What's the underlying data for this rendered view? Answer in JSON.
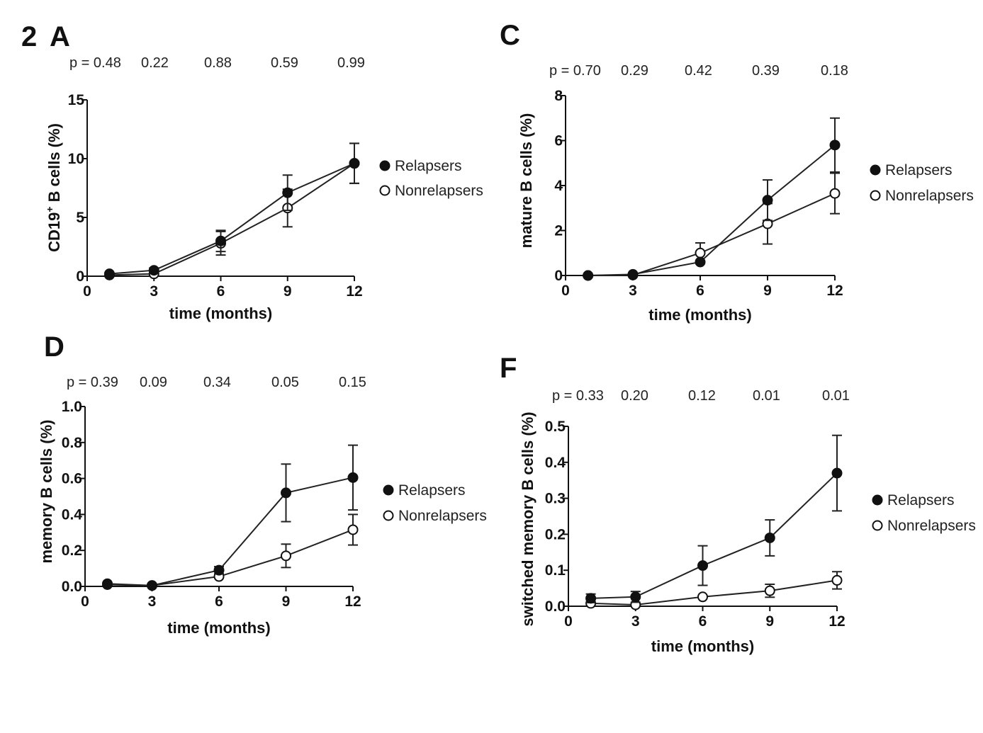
{
  "figure": {
    "number": "2",
    "legend": {
      "filled": "Relapsers",
      "open": "Nonrelapsers"
    }
  },
  "chart_data": [
    {
      "panel": "A",
      "type": "line",
      "xlabel": "time (months)",
      "ylabel_pre": "CD19",
      "ylabel_sup": "+",
      "ylabel_post": " B cells (%)",
      "xlim": [
        0,
        12
      ],
      "ylim": [
        0,
        15
      ],
      "xticks": [
        0,
        3,
        6,
        9,
        12
      ],
      "yticks": [
        0,
        5,
        10,
        15
      ],
      "yticklabels": [
        "0",
        "5",
        "10",
        "15"
      ],
      "p_values": [
        "p = 0.48",
        "0.22",
        "0.88",
        "0.59",
        "0.99"
      ],
      "x": [
        1,
        3,
        6,
        9,
        12
      ],
      "series": [
        {
          "name": "Relapsers",
          "marker": "filled",
          "values": [
            0.2,
            0.5,
            3.0,
            7.1,
            9.6
          ],
          "errors": [
            0.1,
            0.2,
            0.9,
            1.5,
            1.7
          ]
        },
        {
          "name": "Nonrelapsers",
          "marker": "open",
          "values": [
            0.1,
            0.2,
            2.8,
            5.8,
            9.6
          ],
          "errors": [
            0.1,
            0.1,
            1.0,
            1.6,
            1.7
          ]
        }
      ]
    },
    {
      "panel": "C",
      "type": "line",
      "xlabel": "time (months)",
      "ylabel": "mature B cells (%)",
      "xlim": [
        0,
        12
      ],
      "ylim": [
        0,
        8
      ],
      "xticks": [
        0,
        3,
        6,
        9,
        12
      ],
      "yticks": [
        0,
        2,
        4,
        6,
        8
      ],
      "yticklabels": [
        "0",
        "2",
        "4",
        "6",
        "8"
      ],
      "p_values": [
        "p = 0.70",
        "0.29",
        "0.42",
        "0.39",
        "0.18"
      ],
      "x": [
        1,
        3,
        6,
        9,
        12
      ],
      "series": [
        {
          "name": "Relapsers",
          "marker": "filled",
          "values": [
            0.0,
            0.05,
            0.6,
            3.35,
            5.8
          ],
          "errors": [
            0.0,
            0.0,
            0.0,
            0.9,
            1.2
          ]
        },
        {
          "name": "Nonrelapsers",
          "marker": "open",
          "values": [
            0.0,
            0.02,
            1.0,
            2.3,
            3.65
          ],
          "errors": [
            0.0,
            0.0,
            0.45,
            0.9,
            0.9
          ]
        }
      ]
    },
    {
      "panel": "D",
      "type": "line",
      "xlabel": "time (months)",
      "ylabel": "memory B cells (%)",
      "xlim": [
        0,
        12
      ],
      "ylim": [
        0,
        1.0
      ],
      "xticks": [
        0,
        3,
        6,
        9,
        12
      ],
      "yticks": [
        0,
        0.2,
        0.4,
        0.6,
        0.8,
        1.0
      ],
      "yticklabels": [
        "0.0",
        "0.2",
        "0.4",
        "0.6",
        "0.8",
        "1.0"
      ],
      "p_values": [
        "p = 0.39",
        "0.09",
        "0.34",
        "0.05",
        "0.15"
      ],
      "x": [
        1,
        3,
        6,
        9,
        12
      ],
      "series": [
        {
          "name": "Relapsers",
          "marker": "filled",
          "values": [
            0.01,
            0.005,
            0.09,
            0.52,
            0.605
          ],
          "errors": [
            0.0,
            0.0,
            0.02,
            0.16,
            0.18
          ]
        },
        {
          "name": "Nonrelapsers",
          "marker": "open",
          "values": [
            0.015,
            0.005,
            0.055,
            0.17,
            0.315
          ],
          "errors": [
            0.0,
            0.0,
            0.0,
            0.065,
            0.085
          ]
        }
      ]
    },
    {
      "panel": "F",
      "type": "line",
      "xlabel": "time (months)",
      "ylabel": "switched memory B cells (%)",
      "xlim": [
        0,
        12
      ],
      "ylim": [
        0,
        0.5
      ],
      "xticks": [
        0,
        3,
        6,
        9,
        12
      ],
      "yticks": [
        0,
        0.1,
        0.2,
        0.3,
        0.4,
        0.5
      ],
      "yticklabels": [
        "0.0",
        "0.1",
        "0.2",
        "0.3",
        "0.4",
        "0.5"
      ],
      "p_values": [
        "p = 0.33",
        "0.20",
        "0.12",
        "0.01",
        "0.01"
      ],
      "x": [
        1,
        3,
        6,
        9,
        12
      ],
      "series": [
        {
          "name": "Relapsers",
          "marker": "filled",
          "values": [
            0.022,
            0.026,
            0.113,
            0.19,
            0.37
          ],
          "errors": [
            0.012,
            0.015,
            0.055,
            0.05,
            0.105
          ]
        },
        {
          "name": "Nonrelapsers",
          "marker": "open",
          "values": [
            0.008,
            0.004,
            0.026,
            0.043,
            0.072
          ],
          "errors": [
            0.0,
            0.0,
            0.0,
            0.018,
            0.024
          ]
        }
      ]
    }
  ]
}
